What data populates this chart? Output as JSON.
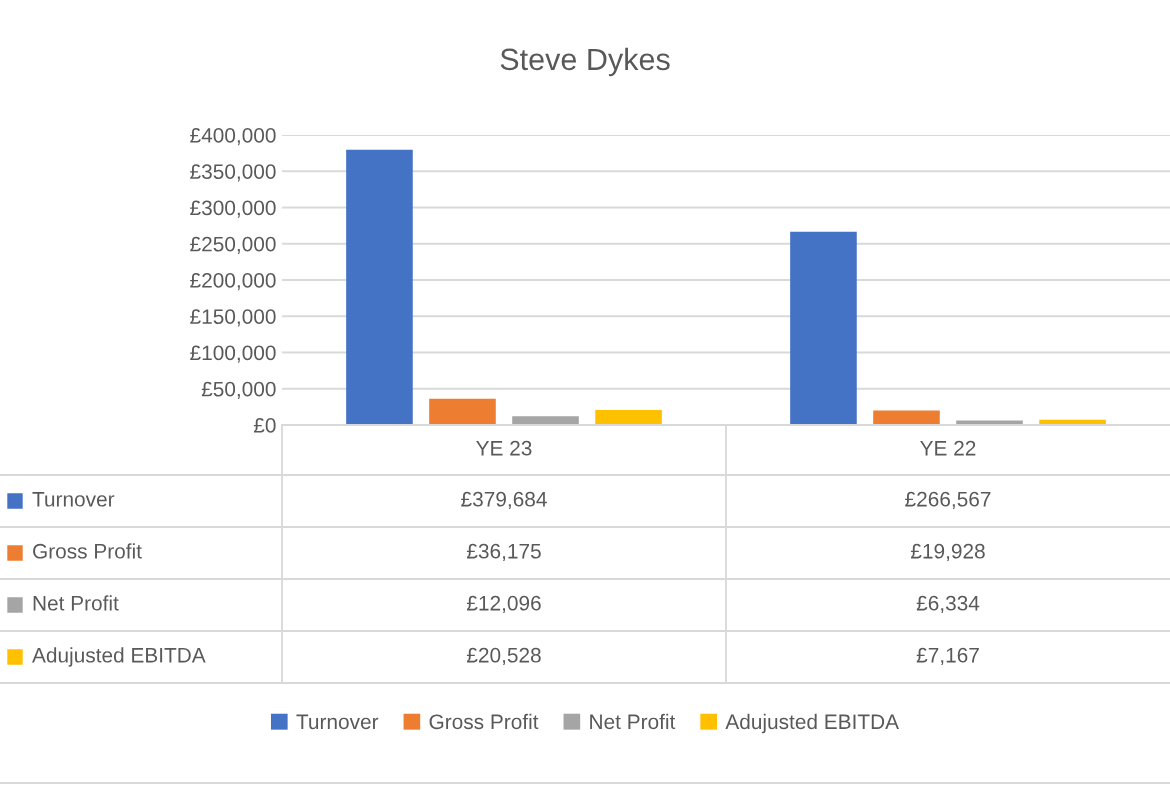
{
  "chart_data": {
    "type": "bar",
    "title": "Steve Dykes",
    "categories": [
      "YE 23",
      "YE 22"
    ],
    "series": [
      {
        "name": "Turnover",
        "color": "#4472c4",
        "values": [
          379684,
          266567
        ],
        "value_labels": [
          "£379,684",
          "£266,567"
        ]
      },
      {
        "name": "Gross Profit",
        "color": "#ed7d31",
        "values": [
          36175,
          19928
        ],
        "value_labels": [
          "£36,175",
          "£19,928"
        ]
      },
      {
        "name": "Net Profit",
        "color": "#a5a5a5",
        "values": [
          12096,
          6334
        ],
        "value_labels": [
          "£12,096",
          "£6,334"
        ]
      },
      {
        "name": "Adujusted EBITDA",
        "color": "#ffc000",
        "values": [
          20528,
          7167
        ],
        "value_labels": [
          "£20,528",
          "£7,167"
        ]
      }
    ],
    "ylim": [
      0,
      400000
    ],
    "yticks": [
      {
        "value": 0,
        "label": "£0"
      },
      {
        "value": 50000,
        "label": "£50,000"
      },
      {
        "value": 100000,
        "label": "£100,000"
      },
      {
        "value": 150000,
        "label": "£150,000"
      },
      {
        "value": 200000,
        "label": "£200,000"
      },
      {
        "value": 250000,
        "label": "£250,000"
      },
      {
        "value": 300000,
        "label": "£300,000"
      },
      {
        "value": 350000,
        "label": "£350,000"
      },
      {
        "value": 400000,
        "label": "£400,000"
      }
    ],
    "grid": "y",
    "legend": "bottom"
  }
}
